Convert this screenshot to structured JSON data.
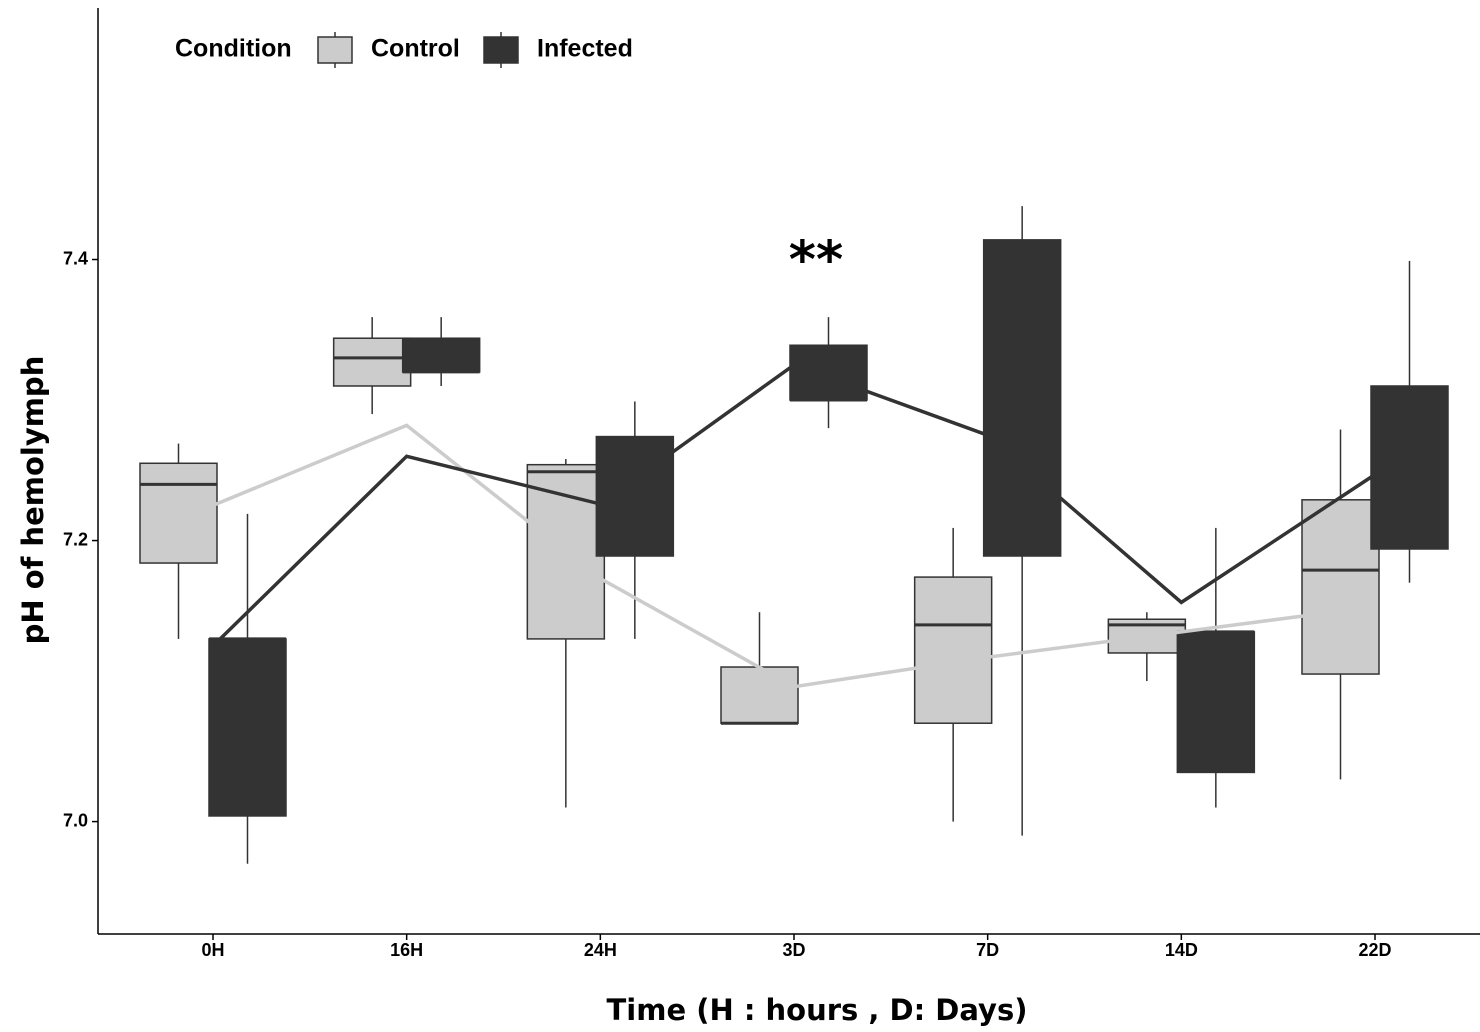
{
  "chart_data": {
    "type": "box",
    "x_label": "Time (H : hours , D: Days)",
    "y_label": "pH of hemolymph",
    "legend_title": "Condition",
    "legend_position": "top-left",
    "categories": [
      "0H",
      "16H",
      "24H",
      "3D",
      "7D",
      "14D",
      "22D"
    ],
    "ylim": [
      6.92,
      7.579
    ],
    "yticks": [
      {
        "value": 7.0,
        "label": "7.0"
      },
      7.2,
      7.4
    ],
    "series": [
      {
        "name": "Control",
        "color": "#cccccc",
        "line_color": "#cccccc",
        "whisker_low": [
          7.13,
          7.29,
          7.01,
          7.07,
          7.0,
          7.1,
          7.03
        ],
        "q1": [
          7.184,
          7.31,
          7.13,
          7.07,
          7.07,
          7.12,
          7.105
        ],
        "median": [
          7.24,
          7.33,
          7.249,
          7.07,
          7.14,
          7.14,
          7.179
        ],
        "q3": [
          7.255,
          7.344,
          7.254,
          7.11,
          7.174,
          7.144,
          7.229
        ],
        "whisker_high": [
          7.269,
          7.359,
          7.258,
          7.149,
          7.209,
          7.149,
          7.279
        ],
        "mean": [
          7.225,
          7.282,
          7.173,
          7.096,
          7.117,
          7.135,
          7.153
        ]
      },
      {
        "name": "Infected",
        "color": "#333333",
        "line_color": "#333333",
        "whisker_low": [
          6.97,
          7.31,
          7.13,
          7.28,
          6.99,
          7.01,
          7.17
        ],
        "q1": [
          7.004,
          7.32,
          7.189,
          7.3,
          7.189,
          7.035,
          7.194
        ],
        "median": [
          7.13,
          7.32,
          7.19,
          7.3,
          7.19,
          7.135,
          7.195
        ],
        "q3": [
          7.13,
          7.344,
          7.274,
          7.339,
          7.414,
          7.135,
          7.31
        ],
        "whisker_high": [
          7.219,
          7.359,
          7.299,
          7.359,
          7.438,
          7.209,
          7.399
        ],
        "mean": [
          7.125,
          7.26,
          7.226,
          7.325,
          7.275,
          7.156,
          7.247
        ]
      }
    ],
    "annotations": [
      {
        "text": "**",
        "category": "3D",
        "y": 7.4
      }
    ]
  }
}
